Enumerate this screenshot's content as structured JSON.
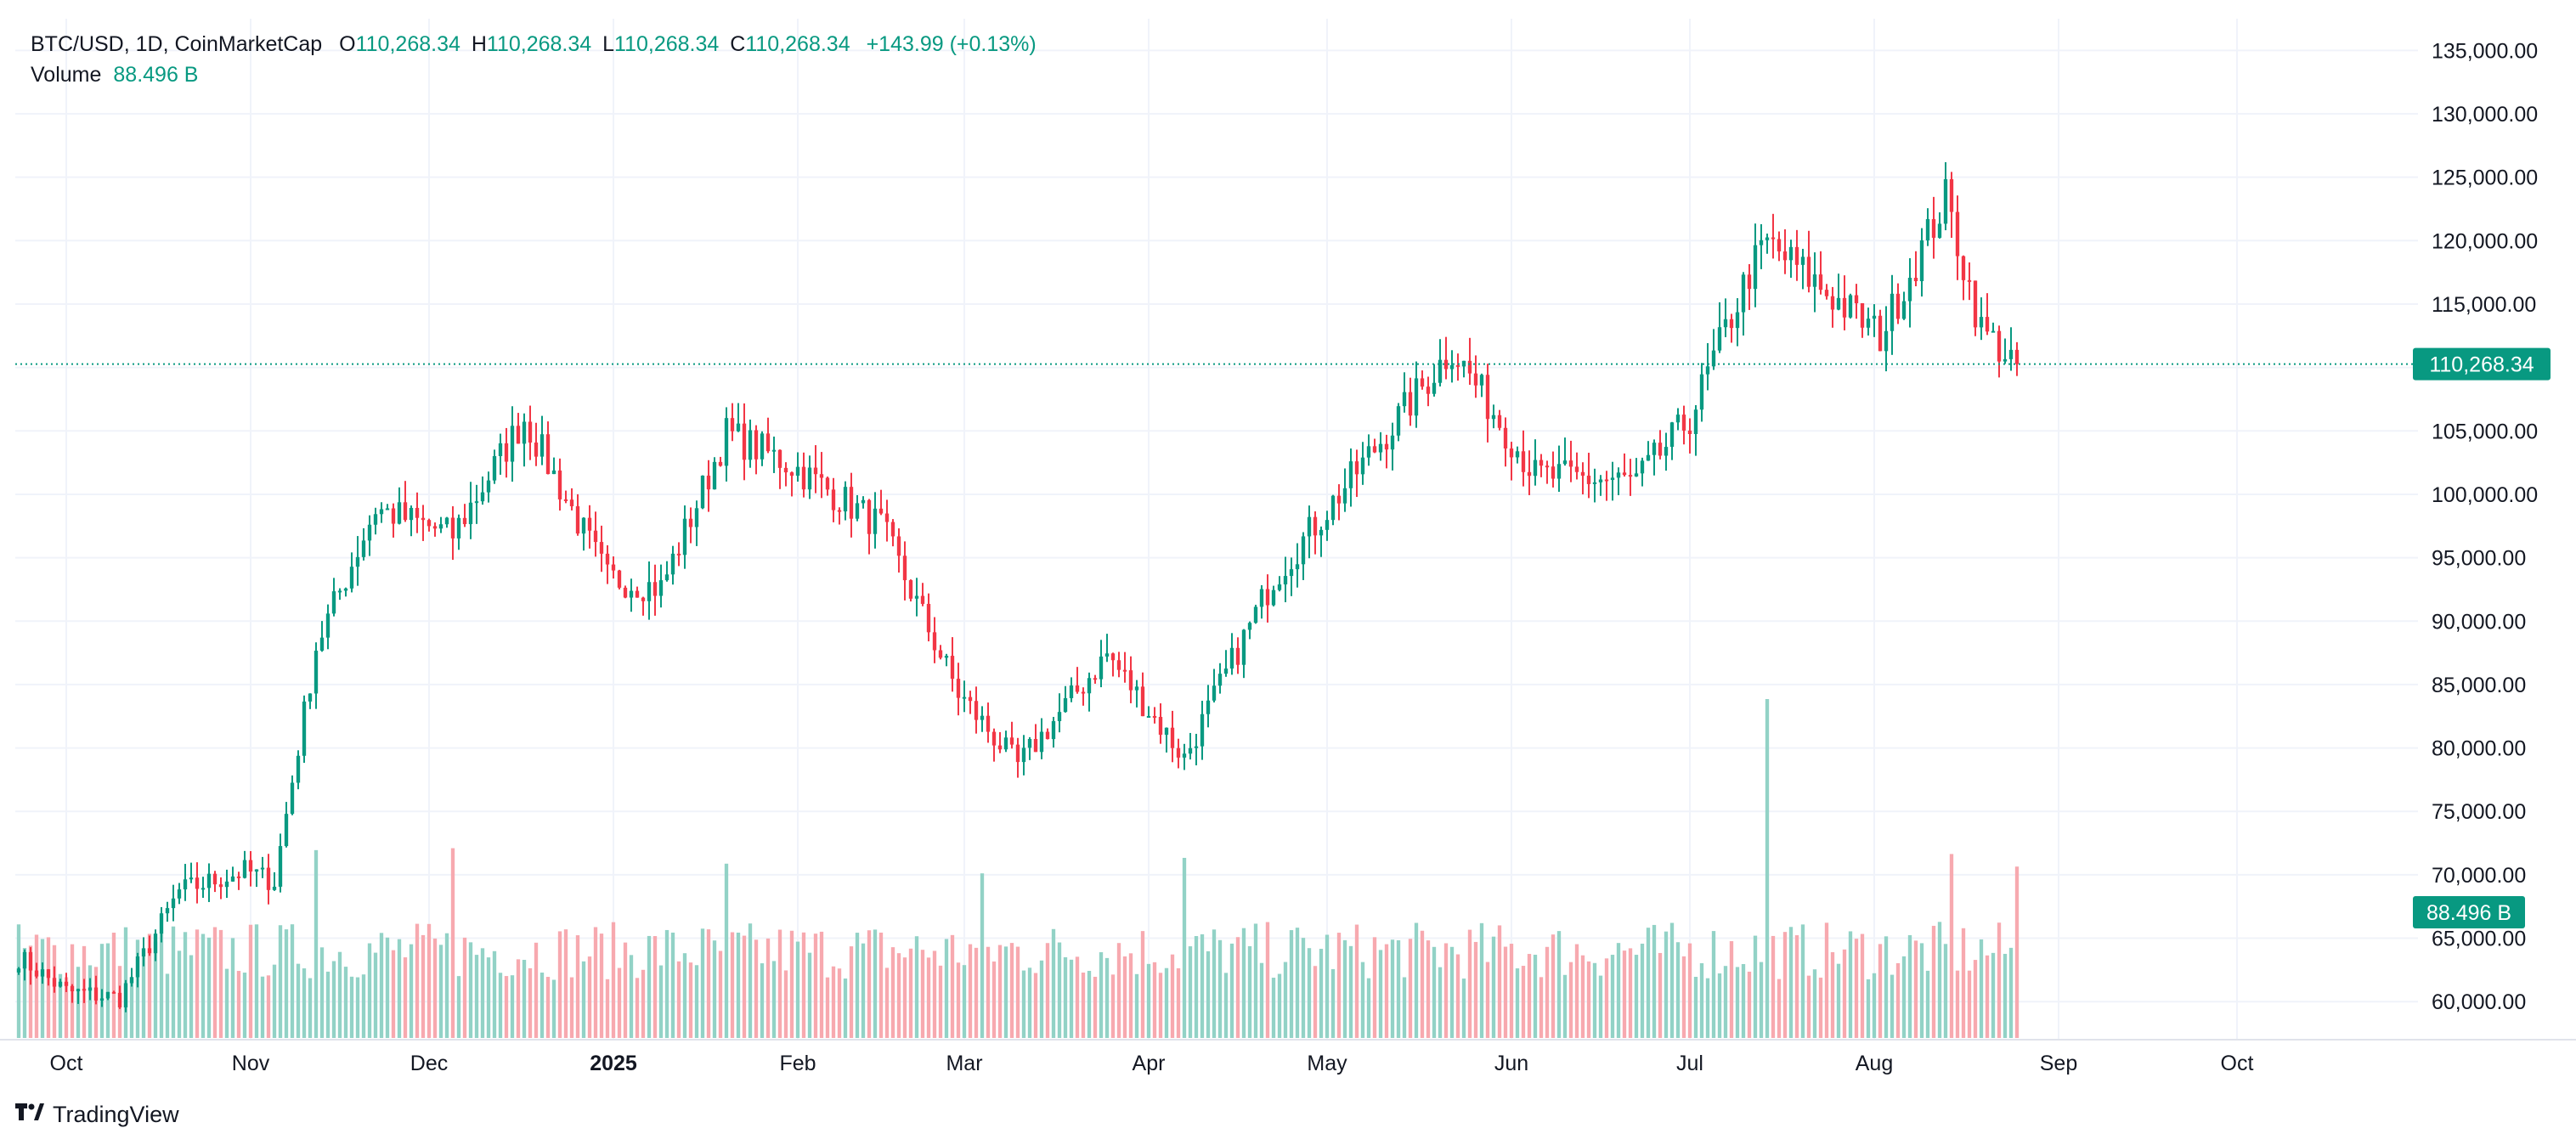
{
  "header": {
    "symbol": "BTC/USD, 1D, CoinMarketCap",
    "open_label": "O",
    "open": "110,268.34",
    "high_label": "H",
    "high": "110,268.34",
    "low_label": "L",
    "low": "110,268.34",
    "close_label": "C",
    "close": "110,268.34",
    "change": "+143.99 (+0.13%)",
    "volume_label": "Volume",
    "volume": "88.496 B"
  },
  "branding": {
    "logo_text": "TradingView"
  },
  "colors": {
    "up": "#089981",
    "down": "#f23645",
    "vol_up": "#92d2c6",
    "vol_down": "#f7a9af",
    "grid": "#f0f3fa",
    "axis_text": "#131722"
  },
  "chart_data": {
    "type": "candlestick",
    "title": "BTC/USD, 1D, CoinMarketCap",
    "ylabel": "",
    "ylim": [
      57000,
      137500
    ],
    "y_ticks": [
      "135,000.00",
      "130,000.00",
      "125,000.00",
      "120,000.00",
      "115,000.00",
      "110,000.00",
      "105,000.00",
      "100,000.00",
      "95,000.00",
      "90,000.00",
      "85,000.00",
      "80,000.00",
      "75,000.00",
      "70,000.00",
      "65,000.00",
      "60,000.00"
    ],
    "x_ticks": [
      "Oct",
      "Nov",
      "Dec",
      "2025",
      "Feb",
      "Mar",
      "Apr",
      "May",
      "Jun",
      "Jul",
      "Aug",
      "Sep",
      "Oct"
    ],
    "last_price_label": "110,268.34",
    "volume_label": "88.496 B",
    "date_range": [
      "2024-09-23",
      "2025-08-25"
    ],
    "x_axis_extends_to": "2025-10-31",
    "key_closes": [
      [
        "2024-09-23",
        63500
      ],
      [
        "2024-10-01",
        60800
      ],
      [
        "2024-10-10",
        60300
      ],
      [
        "2024-10-20",
        68700
      ],
      [
        "2024-10-31",
        70300
      ],
      [
        "2024-11-05",
        69500
      ],
      [
        "2024-11-12",
        88000
      ],
      [
        "2024-11-22",
        98900
      ],
      [
        "2024-12-05",
        96800
      ],
      [
        "2024-12-17",
        106000
      ],
      [
        "2024-12-31",
        93400
      ],
      [
        "2025-01-09",
        92600
      ],
      [
        "2025-01-20",
        104800
      ],
      [
        "2025-01-31",
        102300
      ],
      [
        "2025-02-15",
        97500
      ],
      [
        "2025-02-28",
        84300
      ],
      [
        "2025-03-10",
        78600
      ],
      [
        "2025-03-25",
        87400
      ],
      [
        "2025-04-07",
        79200
      ],
      [
        "2025-04-22",
        93400
      ],
      [
        "2025-05-08",
        103000
      ],
      [
        "2025-05-22",
        111500
      ],
      [
        "2025-06-05",
        101500
      ],
      [
        "2025-06-22",
        101000
      ],
      [
        "2025-07-01",
        106000
      ],
      [
        "2025-07-11",
        117500
      ],
      [
        "2025-07-14",
        119800
      ],
      [
        "2025-08-02",
        112500
      ],
      [
        "2025-08-13",
        123300
      ],
      [
        "2025-08-19",
        113000
      ],
      [
        "2025-08-25",
        110268
      ]
    ],
    "volume_peaks_billion": [
      [
        "2024-11-12",
        97
      ],
      [
        "2024-12-05",
        98
      ],
      [
        "2025-01-20",
        90
      ],
      [
        "2025-03-04",
        85
      ],
      [
        "2025-04-07",
        93
      ],
      [
        "2025-07-14",
        175
      ],
      [
        "2025-08-14",
        95
      ],
      [
        "2025-08-25",
        88.5
      ]
    ]
  }
}
